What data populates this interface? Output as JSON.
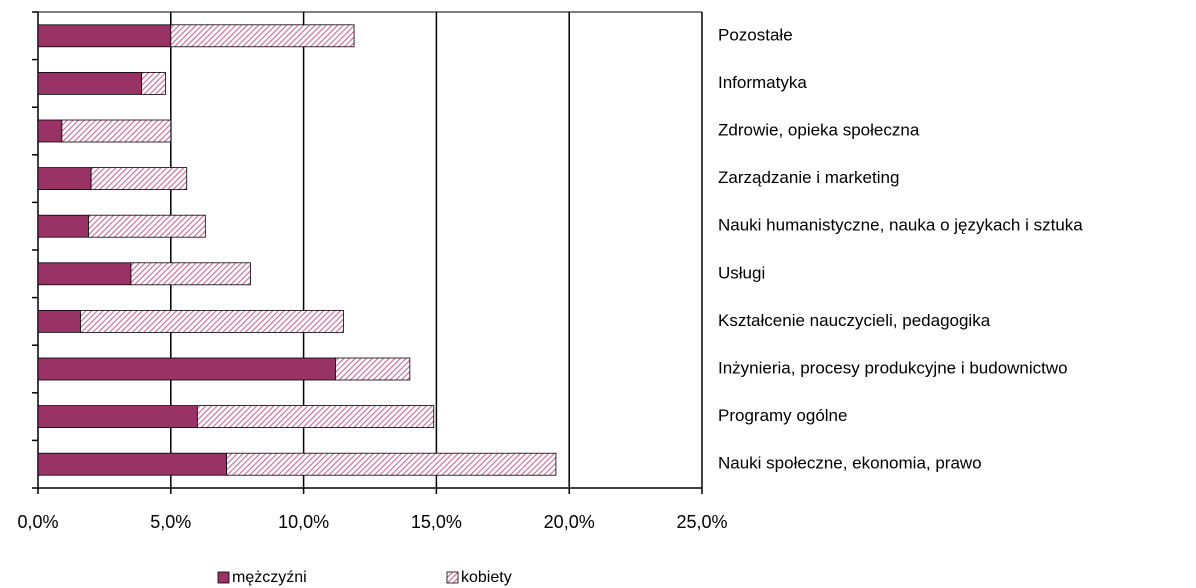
{
  "chart_data": {
    "type": "stacked_barh",
    "categories": [
      "Pozostałe",
      "Informatyka",
      "Zdrowie, opieka społeczna",
      "Zarządzanie i marketing",
      "Nauki humanistyczne, nauka o językach i sztuka",
      "Usługi",
      "Kształcenie nauczycieli, pedagogika",
      "Inżynieria, procesy produkcyjne i budownictwo",
      "Programy ogólne",
      "Nauki społeczne, ekonomia, prawo"
    ],
    "series": [
      {
        "name": "mężczyźni",
        "color": "#993366",
        "values": [
          5.0,
          3.9,
          0.9,
          2.0,
          1.9,
          3.5,
          1.6,
          11.2,
          6.0,
          7.1
        ]
      },
      {
        "name": "kobiety",
        "color": "#cc6699",
        "values": [
          6.9,
          0.9,
          4.1,
          3.6,
          4.4,
          4.5,
          9.9,
          2.8,
          8.9,
          12.4
        ]
      }
    ],
    "xlim": [
      0,
      25
    ],
    "xticks": [
      {
        "value": 0,
        "label": "0,0%"
      },
      {
        "value": 5,
        "label": "5,0%"
      },
      {
        "value": 10,
        "label": "10,0%"
      },
      {
        "value": 15,
        "label": "15,0%"
      },
      {
        "value": 20,
        "label": "20,0%"
      },
      {
        "value": 25,
        "label": "25,0%"
      }
    ],
    "grid": true,
    "legend": "bottom"
  }
}
